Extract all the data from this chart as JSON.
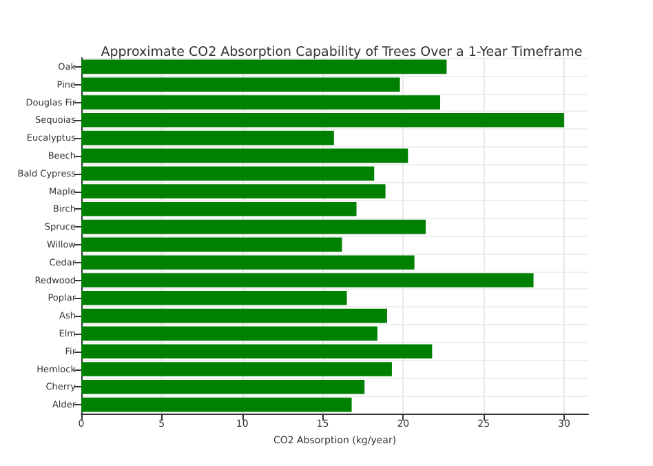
{
  "chart_data": {
    "type": "bar",
    "orientation": "horizontal",
    "title": "Approximate CO2 Absorption Capability of Trees Over a 1-Year Timeframe",
    "xlabel": "CO2 Absorption (kg/year)",
    "categories": [
      "Oak",
      "Pine",
      "Douglas Fir",
      "Sequoias",
      "Eucalyptus",
      "Beech",
      "Bald Cypress",
      "Maple",
      "Birch",
      "Spruce",
      "Willow",
      "Cedar",
      "Redwood",
      "Poplar",
      "Ash",
      "Elm",
      "Fir",
      "Hemlock",
      "Cherry",
      "Alder"
    ],
    "values": [
      22.7,
      19.8,
      22.3,
      30.0,
      15.7,
      20.3,
      18.2,
      18.9,
      17.1,
      21.4,
      16.2,
      20.7,
      28.1,
      16.5,
      19.0,
      18.4,
      21.8,
      19.3,
      17.6,
      16.8
    ],
    "color": "#008000",
    "xlim": [
      0,
      31.5
    ],
    "xticks": [
      0,
      5,
      10,
      15,
      20,
      25,
      30
    ],
    "grid": true
  }
}
